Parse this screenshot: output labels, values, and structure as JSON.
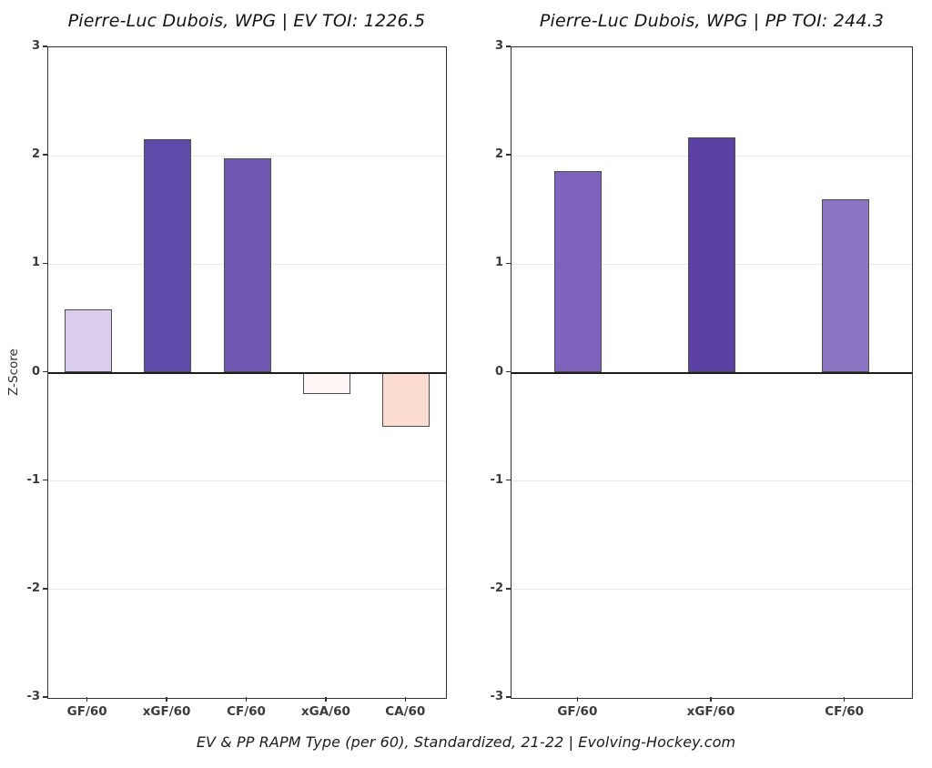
{
  "caption": "EV & PP RAPM Type (per 60), Standardized, 21-22    |    Evolving-Hockey.com",
  "ylabel": "Z-Score",
  "chart_data": [
    {
      "type": "bar",
      "title": "Pierre-Luc Dubois, WPG  |  EV TOI: 1226.5",
      "player": "Pierre-Luc Dubois",
      "team": "WPG",
      "strength": "EV",
      "toi": 1226.5,
      "ylabel": "Z-Score",
      "ylim": [
        -3,
        3
      ],
      "yticks": [
        3,
        2,
        1,
        0,
        -1,
        -2,
        -3
      ],
      "grid": "on",
      "categories": [
        "GF/60",
        "xGF/60",
        "CF/60",
        "xGA/60",
        "CA/60"
      ],
      "values": [
        0.58,
        2.15,
        1.98,
        -0.2,
        -0.5
      ],
      "bar_colors": [
        "#d9ccec",
        "#5f4aa9",
        "#6f58b1",
        "#fff7f5",
        "#fbdcd1"
      ],
      "bar_patterns": [
        "none",
        "none",
        "none",
        "dots",
        "none"
      ]
    },
    {
      "type": "bar",
      "title": "Pierre-Luc Dubois, WPG  |  PP TOI: 244.3",
      "player": "Pierre-Luc Dubois",
      "team": "WPG",
      "strength": "PP",
      "toi": 244.3,
      "ylabel": "Z-Score",
      "ylim": [
        -3,
        3
      ],
      "yticks": [
        3,
        2,
        1,
        0,
        -1,
        -2,
        -3
      ],
      "grid": "on",
      "categories": [
        "GF/60",
        "xGF/60",
        "CF/60"
      ],
      "values": [
        1.86,
        2.17,
        1.6
      ],
      "bar_colors": [
        "#7d63bb",
        "#5c41a5",
        "#8c76c4"
      ],
      "bar_patterns": [
        "none",
        "none",
        "none"
      ]
    }
  ],
  "style": {
    "zero_line_color": "#1b1b1b",
    "gridline_color": "#e9e9e9",
    "spine_color": "#333333",
    "bar_edge_color": "#4d4d4d"
  }
}
